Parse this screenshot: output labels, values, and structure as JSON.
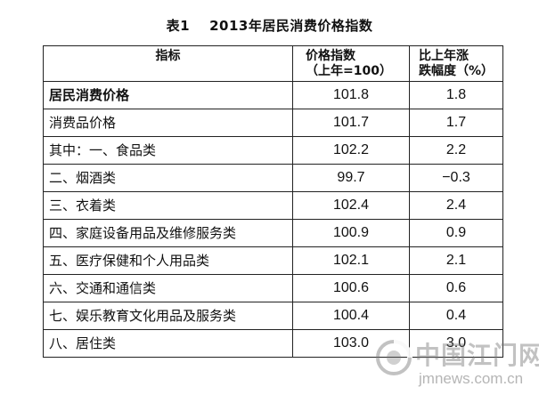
{
  "caption": {
    "number": "表1",
    "title": "2013年居民消费价格指数"
  },
  "table": {
    "headers": {
      "indicator": "指标",
      "index_line1": "价格指数",
      "index_line2": "（上年=100）",
      "change_line1": "比上年涨",
      "change_line2": "跌幅度（%）"
    },
    "rows": [
      {
        "label": "居民消费价格",
        "index": "101.8",
        "change": "1.8",
        "bold": true
      },
      {
        "label": "消费品价格",
        "index": "101.7",
        "change": "1.7"
      },
      {
        "label": "其中：一、食品类",
        "index": "102.2",
        "change": "2.2"
      },
      {
        "label": "二、烟酒类",
        "index": "99.7",
        "change": "−0.3"
      },
      {
        "label": "三、衣着类",
        "index": "102.4",
        "change": "2.4"
      },
      {
        "label": "四、家庭设备用品及维修服务类",
        "index": "100.9",
        "change": "0.9"
      },
      {
        "label": "五、医疗保健和个人用品类",
        "index": "102.1",
        "change": "2.1"
      },
      {
        "label": "六、交通和通信类",
        "index": "100.6",
        "change": "0.6"
      },
      {
        "label": "七、娱乐教育文化用品及服务类",
        "index": "100.4",
        "change": "0.4"
      },
      {
        "label": "八、居住类",
        "index": "103.0",
        "change": "3.0"
      }
    ]
  },
  "watermark": {
    "site_name": "中国江门网",
    "url": "jmnews.com.cn"
  }
}
